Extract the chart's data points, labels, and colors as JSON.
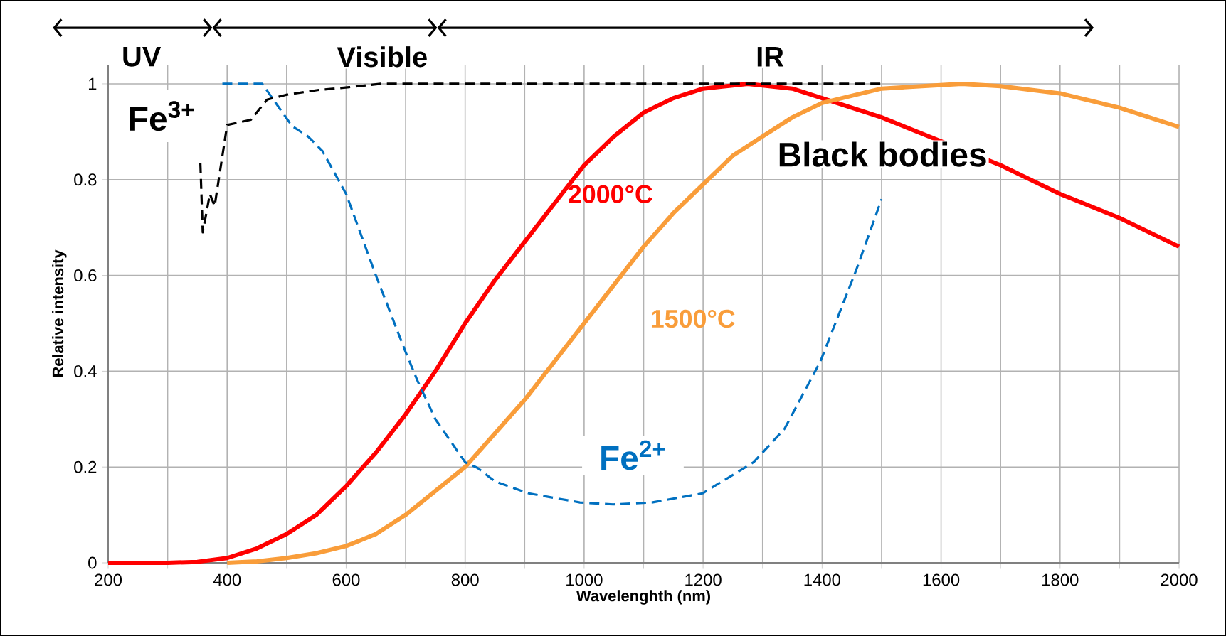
{
  "chart_data": {
    "type": "line",
    "xlabel": "Wavelenghth (nm)",
    "ylabel": "Relative intensity",
    "xlim": [
      200,
      2000
    ],
    "ylim": [
      0,
      1.04
    ],
    "xticks": [
      200,
      {
        "value": 300,
        "label": null
      },
      400,
      {
        "value": 500,
        "label": null
      },
      600,
      {
        "value": 700,
        "label": null
      },
      800,
      {
        "value": 900,
        "label": null
      },
      1000,
      {
        "value": 1100,
        "label": null
      },
      1200,
      {
        "value": 1300,
        "label": null
      },
      1400,
      {
        "value": 1500,
        "label": null
      },
      1600,
      {
        "value": 1700,
        "label": null
      },
      1800,
      {
        "value": 1900,
        "label": null
      },
      2000
    ],
    "yticks": [
      0,
      0.2,
      0.4,
      0.6,
      0.8,
      1
    ],
    "grid": true,
    "legend": false,
    "marker": "none",
    "annotations": [
      "UV",
      "Visible",
      "IR",
      "Black bodies"
    ],
    "series": [
      {
        "name": "2000°C",
        "color": "#ff0000",
        "line_style": "solid",
        "x": [
          200,
          300,
          350,
          400,
          450,
          500,
          550,
          600,
          650,
          700,
          750,
          800,
          850,
          900,
          950,
          1000,
          1050,
          1100,
          1150,
          1200,
          1275,
          1350,
          1400,
          1500,
          1600,
          1700,
          1800,
          1900,
          2000
        ],
        "values": [
          0,
          0,
          0.002,
          0.01,
          0.03,
          0.06,
          0.1,
          0.16,
          0.23,
          0.31,
          0.4,
          0.5,
          0.59,
          0.67,
          0.75,
          0.83,
          0.89,
          0.94,
          0.97,
          0.99,
          1.0,
          0.99,
          0.97,
          0.93,
          0.88,
          0.83,
          0.77,
          0.72,
          0.66
        ]
      },
      {
        "name": "1500°C",
        "color": "#f99d3a",
        "line_style": "solid",
        "x": [
          400,
          450,
          500,
          550,
          600,
          650,
          700,
          750,
          800,
          850,
          900,
          950,
          1000,
          1050,
          1100,
          1150,
          1200,
          1250,
          1300,
          1350,
          1400,
          1500,
          1635,
          1700,
          1800,
          1900,
          2000
        ],
        "values": [
          0,
          0.003,
          0.01,
          0.02,
          0.035,
          0.06,
          0.1,
          0.15,
          0.2,
          0.27,
          0.34,
          0.42,
          0.5,
          0.58,
          0.66,
          0.73,
          0.79,
          0.85,
          0.89,
          0.93,
          0.96,
          0.99,
          1.0,
          0.995,
          0.98,
          0.95,
          0.91
        ]
      },
      {
        "name": "Fe$^{2+}$",
        "color": "#0070c0",
        "line_style": "dashed",
        "x": [
          392,
          459,
          472,
          509,
          536,
          560,
          600,
          650,
          700,
          720,
          750,
          800,
          821,
          850,
          907,
          993,
          1049,
          1114,
          1199,
          1285,
          1337,
          1397,
          1457,
          1500
        ],
        "values": [
          1.0,
          1.0,
          0.977,
          0.912,
          0.89,
          0.86,
          0.77,
          0.6,
          0.44,
          0.38,
          0.3,
          0.21,
          0.198,
          0.17,
          0.145,
          0.126,
          0.122,
          0.126,
          0.145,
          0.21,
          0.28,
          0.42,
          0.61,
          0.759
        ]
      },
      {
        "name": "Fe$^{3+}$",
        "color": "#000000",
        "line_style": "dashed",
        "x": [
          355,
          359,
          371,
          379,
          400,
          440,
          467,
          499,
          552,
          605,
          658,
          1500
        ],
        "values": [
          0.834,
          0.69,
          0.77,
          0.745,
          0.914,
          0.925,
          0.967,
          0.977,
          0.987,
          0.993,
          1.0,
          1.0
        ]
      }
    ]
  }
}
